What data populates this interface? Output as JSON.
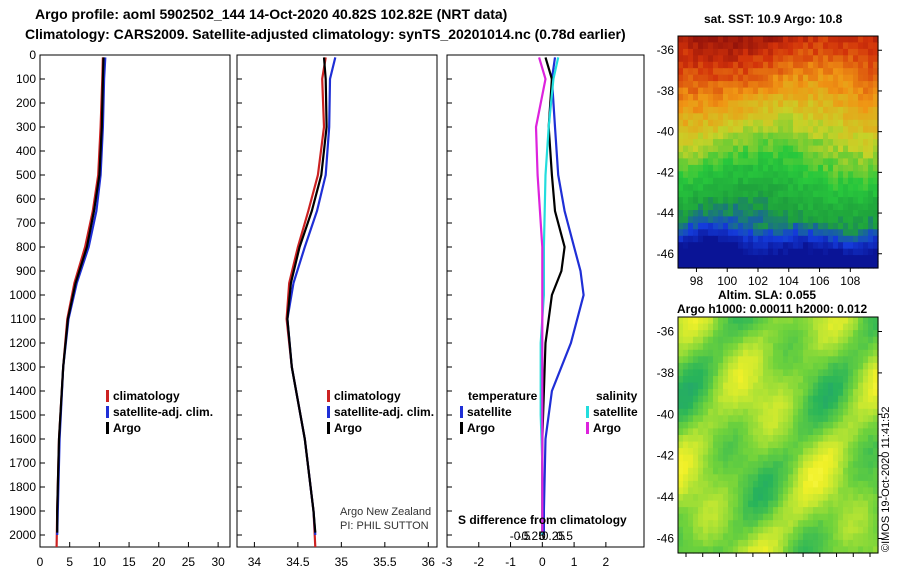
{
  "header": {
    "line1": "Argo profile: aoml 5902502_144 14-Oct-2020 40.82S 102.82E (NRT data)",
    "line2": "Climatology: CARS2009. Satellite-adjusted climatology: synTS_20201014.nc (0.78d earlier)"
  },
  "colors": {
    "climatology": "#cc2222",
    "satellite": "#1f2fd6",
    "argo": "#000000",
    "sat_salinity": "#22dddd",
    "argo_salinity": "#dd22dd"
  },
  "chart_data": [
    {
      "type": "line",
      "id": "temperature",
      "ylim": [
        2050,
        0
      ],
      "xlim": [
        0,
        32
      ],
      "yticks": [
        0,
        100,
        200,
        300,
        400,
        500,
        600,
        700,
        800,
        900,
        1000,
        1100,
        1200,
        1300,
        1400,
        1500,
        1600,
        1700,
        1800,
        1900,
        2000
      ],
      "xticks": [
        0,
        5,
        10,
        15,
        20,
        25,
        30
      ],
      "legend": [
        "climatology",
        "satellite-adj. clim.",
        "Argo"
      ],
      "series": [
        {
          "name": "climatology",
          "color": "#cc2222",
          "points": [
            [
              10.6,
              10
            ],
            [
              10.5,
              100
            ],
            [
              10.2,
              300
            ],
            [
              9.8,
              500
            ],
            [
              8.9,
              650
            ],
            [
              7.6,
              800
            ],
            [
              5.8,
              950
            ],
            [
              4.6,
              1100
            ],
            [
              3.9,
              1300
            ],
            [
              3.2,
              1600
            ],
            [
              2.9,
              1900
            ],
            [
              2.8,
              2050
            ]
          ]
        },
        {
          "name": "satellite-adj. clim.",
          "color": "#1f2fd6",
          "points": [
            [
              11.0,
              10
            ],
            [
              10.8,
              100
            ],
            [
              10.6,
              300
            ],
            [
              10.2,
              500
            ],
            [
              9.5,
              650
            ],
            [
              8.2,
              800
            ],
            [
              6.2,
              950
            ],
            [
              4.8,
              1100
            ],
            [
              3.9,
              1300
            ],
            [
              3.3,
              1600
            ],
            [
              3.0,
              1900
            ],
            [
              2.9,
              2000
            ]
          ]
        },
        {
          "name": "Argo",
          "color": "#000000",
          "points": [
            [
              10.7,
              10
            ],
            [
              10.6,
              100
            ],
            [
              10.4,
              300
            ],
            [
              10.0,
              500
            ],
            [
              9.1,
              650
            ],
            [
              7.9,
              800
            ],
            [
              6.0,
              950
            ],
            [
              4.7,
              1100
            ],
            [
              3.9,
              1300
            ],
            [
              3.2,
              1600
            ],
            [
              2.9,
              1900
            ],
            [
              2.9,
              1990
            ]
          ]
        }
      ]
    },
    {
      "type": "line",
      "id": "salinity",
      "ylim": [
        2050,
        0
      ],
      "xlim": [
        33.8,
        36.1
      ],
      "xticks": [
        34,
        34.5,
        35,
        35.5,
        36
      ],
      "xticklabels": [
        "34",
        "34.5",
        "35",
        "35.5",
        "36"
      ],
      "legend": [
        "climatology",
        "satellite-adj. clim.",
        "Argo"
      ],
      "credit1": "Argo New Zealand",
      "credit2": "PI: PHIL SUTTON",
      "series": [
        {
          "name": "climatology",
          "color": "#cc2222",
          "points": [
            [
              34.82,
              10
            ],
            [
              34.78,
              100
            ],
            [
              34.8,
              300
            ],
            [
              34.73,
              500
            ],
            [
              34.62,
              650
            ],
            [
              34.5,
              800
            ],
            [
              34.4,
              950
            ],
            [
              34.37,
              1100
            ],
            [
              34.43,
              1300
            ],
            [
              34.58,
              1600
            ],
            [
              34.68,
              1900
            ],
            [
              34.7,
              2050
            ]
          ]
        },
        {
          "name": "satellite-adj. clim.",
          "color": "#1f2fd6",
          "points": [
            [
              34.93,
              10
            ],
            [
              34.87,
              100
            ],
            [
              34.86,
              300
            ],
            [
              34.82,
              500
            ],
            [
              34.72,
              650
            ],
            [
              34.58,
              800
            ],
            [
              34.45,
              950
            ],
            [
              34.38,
              1100
            ],
            [
              34.43,
              1300
            ],
            [
              34.58,
              1600
            ],
            [
              34.68,
              1900
            ],
            [
              34.7,
              2000
            ]
          ]
        },
        {
          "name": "Argo",
          "color": "#000000",
          "points": [
            [
              34.8,
              10
            ],
            [
              34.82,
              100
            ],
            [
              34.83,
              300
            ],
            [
              34.77,
              500
            ],
            [
              34.66,
              650
            ],
            [
              34.52,
              800
            ],
            [
              34.42,
              950
            ],
            [
              34.38,
              1100
            ],
            [
              34.43,
              1300
            ],
            [
              34.58,
              1600
            ],
            [
              34.68,
              1900
            ],
            [
              34.7,
              1990
            ]
          ]
        }
      ]
    },
    {
      "type": "line",
      "id": "difference",
      "ylim": [
        2050,
        0
      ],
      "xlim": [
        -3,
        3.2
      ],
      "xticks": [
        -3,
        -2,
        -1,
        0,
        1,
        2
      ],
      "xticklabels": [
        "-3",
        "-2",
        "-1",
        "0",
        "1",
        "2"
      ],
      "sxticks": [
        -0.5,
        -0.25,
        0,
        0.25,
        0.5
      ],
      "sxticklabels": [
        "-0.5",
        "-0.25",
        "0",
        "0.25",
        "0.5"
      ],
      "sxlabel": "S difference from climatology",
      "legend_temperature": "temperature",
      "legend_salinity": "salinity",
      "legend": [
        "satellite",
        "Argo",
        "satellite",
        "Argo"
      ],
      "series": [
        {
          "name": "temperature satellite",
          "color": "#1f2fd6",
          "points": [
            [
              0.4,
              10
            ],
            [
              0.3,
              100
            ],
            [
              0.4,
              300
            ],
            [
              0.5,
              500
            ],
            [
              0.7,
              650
            ],
            [
              1.0,
              800
            ],
            [
              1.2,
              900
            ],
            [
              1.3,
              1000
            ],
            [
              0.9,
              1200
            ],
            [
              0.3,
              1400
            ],
            [
              0.1,
              1600
            ],
            [
              0.05,
              1900
            ],
            [
              0.05,
              2000
            ]
          ]
        },
        {
          "name": "temperature Argo",
          "color": "#000000",
          "points": [
            [
              0.1,
              10
            ],
            [
              0.3,
              100
            ],
            [
              0.2,
              300
            ],
            [
              0.3,
              500
            ],
            [
              0.4,
              650
            ],
            [
              0.7,
              800
            ],
            [
              0.6,
              900
            ],
            [
              0.3,
              1000
            ],
            [
              0.1,
              1200
            ],
            [
              0.05,
              1400
            ],
            [
              0.0,
              1600
            ],
            [
              0.0,
              1900
            ],
            [
              0.0,
              1990
            ]
          ]
        },
        {
          "name": "salinity satellite",
          "color": "#22dddd",
          "points": [
            [
              0.5,
              10
            ],
            [
              0.35,
              100
            ],
            [
              0.2,
              300
            ],
            [
              0.1,
              500
            ],
            [
              0.05,
              800
            ],
            [
              0.05,
              1000
            ],
            [
              -0.05,
              1200
            ],
            [
              -0.05,
              1500
            ],
            [
              0.0,
              1700
            ],
            [
              0.0,
              2000
            ]
          ]
        },
        {
          "name": "salinity Argo",
          "color": "#dd22dd",
          "points": [
            [
              -0.1,
              10
            ],
            [
              0.1,
              100
            ],
            [
              -0.2,
              300
            ],
            [
              -0.15,
              500
            ],
            [
              0.0,
              800
            ],
            [
              0.0,
              1000
            ],
            [
              0.0,
              1200
            ],
            [
              0.0,
              1500
            ],
            [
              0.0,
              1700
            ],
            [
              0.0,
              1990
            ]
          ]
        }
      ]
    },
    {
      "type": "heatmap",
      "id": "sst-map",
      "title": "sat. SST: 10.9 Argo: 10.8",
      "xticks": [
        98,
        100,
        102,
        104,
        106,
        108
      ],
      "yticks": [
        -36,
        -38,
        -40,
        -42,
        -44,
        -46
      ],
      "xlim": [
        96.8,
        109.8
      ],
      "ylim": [
        -46.7,
        -35.3
      ],
      "argo_position": {
        "lon": 102.82,
        "lat": -40.82
      }
    },
    {
      "type": "heatmap",
      "id": "sla-map",
      "title": "Altim. SLA: 0.055",
      "subtitle": "Argo h1000: 0.00011 h2000: 0.012",
      "yticks": [
        -36,
        -38,
        -40,
        -42,
        -44,
        -46
      ],
      "ylim": [
        -46.7,
        -35.3
      ],
      "footer": "©IMOS 19-Oct-2020 11:41:52"
    }
  ]
}
